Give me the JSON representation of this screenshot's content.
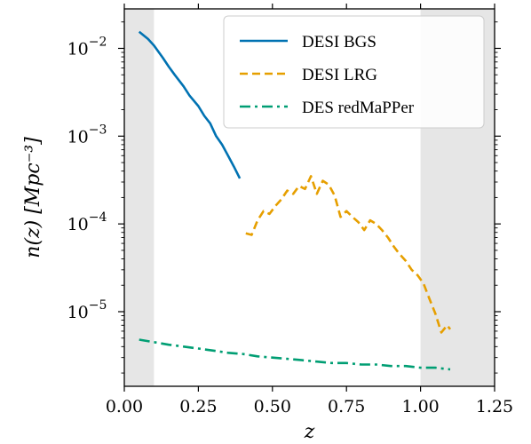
{
  "chart_data": {
    "type": "line",
    "xlabel": "z",
    "ylabel": "n(z)  [Mpc⁻³]",
    "xlim": [
      0.0,
      1.25
    ],
    "ylim_log10": [
      -5.85,
      -1.55
    ],
    "yscale": "log",
    "x_ticks": [
      "0.00",
      "0.25",
      "0.50",
      "0.75",
      "1.00",
      "1.25"
    ],
    "x_tick_values": [
      0.0,
      0.25,
      0.5,
      0.75,
      1.0,
      1.25
    ],
    "y_ticks": [
      {
        "base": "10",
        "exp": "−2",
        "value": 0.01
      },
      {
        "base": "10",
        "exp": "−3",
        "value": 0.001
      },
      {
        "base": "10",
        "exp": "−4",
        "value": 0.0001
      },
      {
        "base": "10",
        "exp": "−5",
        "value": 1e-05
      }
    ],
    "shaded_regions": [
      [
        0.0,
        0.1
      ],
      [
        1.0,
        1.25
      ]
    ],
    "grid": false,
    "legend_position": "top-right",
    "series": [
      {
        "name": "DESI BGS",
        "style": "solid",
        "color": "#0072b2",
        "x": [
          0.05,
          0.08,
          0.1,
          0.13,
          0.15,
          0.17,
          0.2,
          0.22,
          0.25,
          0.27,
          0.29,
          0.31,
          0.33,
          0.35,
          0.37,
          0.39
        ],
        "y": [
          0.0155,
          0.0128,
          0.0108,
          0.0078,
          0.0062,
          0.005,
          0.0037,
          0.0029,
          0.0022,
          0.0017,
          0.0014,
          0.001,
          0.0008,
          0.0006,
          0.00045,
          0.00033
        ]
      },
      {
        "name": "DESI LRG",
        "style": "dashed",
        "color": "#e69f00",
        "x": [
          0.41,
          0.43,
          0.45,
          0.47,
          0.49,
          0.51,
          0.53,
          0.55,
          0.57,
          0.59,
          0.61,
          0.63,
          0.65,
          0.67,
          0.69,
          0.71,
          0.73,
          0.75,
          0.77,
          0.79,
          0.81,
          0.83,
          0.85,
          0.87,
          0.89,
          0.91,
          0.93,
          0.95,
          0.97,
          0.99,
          1.01,
          1.03,
          1.05,
          1.07,
          1.09,
          1.1
        ],
        "y": [
          7.8e-05,
          7.5e-05,
          0.00011,
          0.00014,
          0.00013,
          0.00016,
          0.00019,
          0.00024,
          0.00022,
          0.00027,
          0.00025,
          0.00035,
          0.00022,
          0.00031,
          0.00028,
          0.00021,
          0.00012,
          0.00014,
          0.00012,
          0.000105,
          8.5e-05,
          0.00011,
          0.0001,
          8.5e-05,
          7e-05,
          5.5e-05,
          4.5e-05,
          3.8e-05,
          3e-05,
          2.6e-05,
          2.1e-05,
          1.4e-05,
          9.5e-06,
          5.8e-06,
          7e-06,
          6.3e-06
        ]
      },
      {
        "name": "DES redMaPPer",
        "style": "dashdot",
        "color": "#009e73",
        "x": [
          0.05,
          0.1,
          0.15,
          0.2,
          0.25,
          0.3,
          0.35,
          0.4,
          0.45,
          0.5,
          0.55,
          0.6,
          0.65,
          0.7,
          0.75,
          0.8,
          0.85,
          0.9,
          0.95,
          1.0,
          1.05,
          1.1
        ],
        "y": [
          4.8e-06,
          4.5e-06,
          4.2e-06,
          4e-06,
          3.8e-06,
          3.6e-06,
          3.4e-06,
          3.3e-06,
          3.1e-06,
          3e-06,
          2.9e-06,
          2.8e-06,
          2.7e-06,
          2.6e-06,
          2.6e-06,
          2.5e-06,
          2.5e-06,
          2.4e-06,
          2.4e-06,
          2.3e-06,
          2.3e-06,
          2.2e-06
        ]
      }
    ]
  }
}
